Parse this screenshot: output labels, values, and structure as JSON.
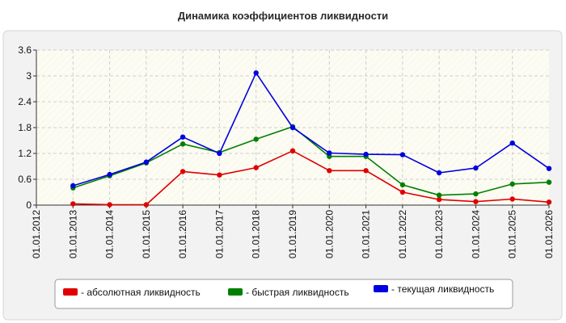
{
  "chart_data": {
    "type": "line",
    "title": "Динамика коэффициентов ликвидности",
    "xlabel": "",
    "ylabel": "",
    "ylim": [
      0,
      3.6
    ],
    "yticks": [
      "0",
      "0.6",
      "1.2",
      "1.8",
      "2.4",
      "3",
      "3.6"
    ],
    "categories": [
      "01.01.2012",
      "01.01.2013",
      "01.01.2014",
      "01.01.2015",
      "01.01.2016",
      "01.01.2017",
      "01.01.2018",
      "01.01.2019",
      "01.01.2020",
      "01.01.2021",
      "01.01.2022",
      "01.01.2023",
      "01.01.2024",
      "01.01.2025",
      "01.01.2026"
    ],
    "grid": true,
    "legend_position": "bottom",
    "series": [
      {
        "name": "- абсолютная ликвидность",
        "color": "#e00000",
        "values": [
          null,
          0.03,
          0.01,
          0.01,
          0.78,
          0.7,
          0.87,
          1.26,
          0.8,
          0.8,
          0.3,
          0.13,
          0.08,
          0.14,
          0.07
        ]
      },
      {
        "name": "- быстрая ликвидность",
        "color": "#008000",
        "values": [
          null,
          0.4,
          0.68,
          0.98,
          1.42,
          1.22,
          1.53,
          1.82,
          1.13,
          1.13,
          0.47,
          0.23,
          0.26,
          0.49,
          0.53
        ]
      },
      {
        "name": "- текущая ликвидность",
        "color": "#0000e0",
        "values": [
          null,
          0.45,
          0.71,
          1.0,
          1.58,
          1.2,
          3.07,
          1.8,
          1.21,
          1.18,
          1.17,
          0.75,
          0.86,
          1.44,
          0.85
        ]
      }
    ]
  }
}
